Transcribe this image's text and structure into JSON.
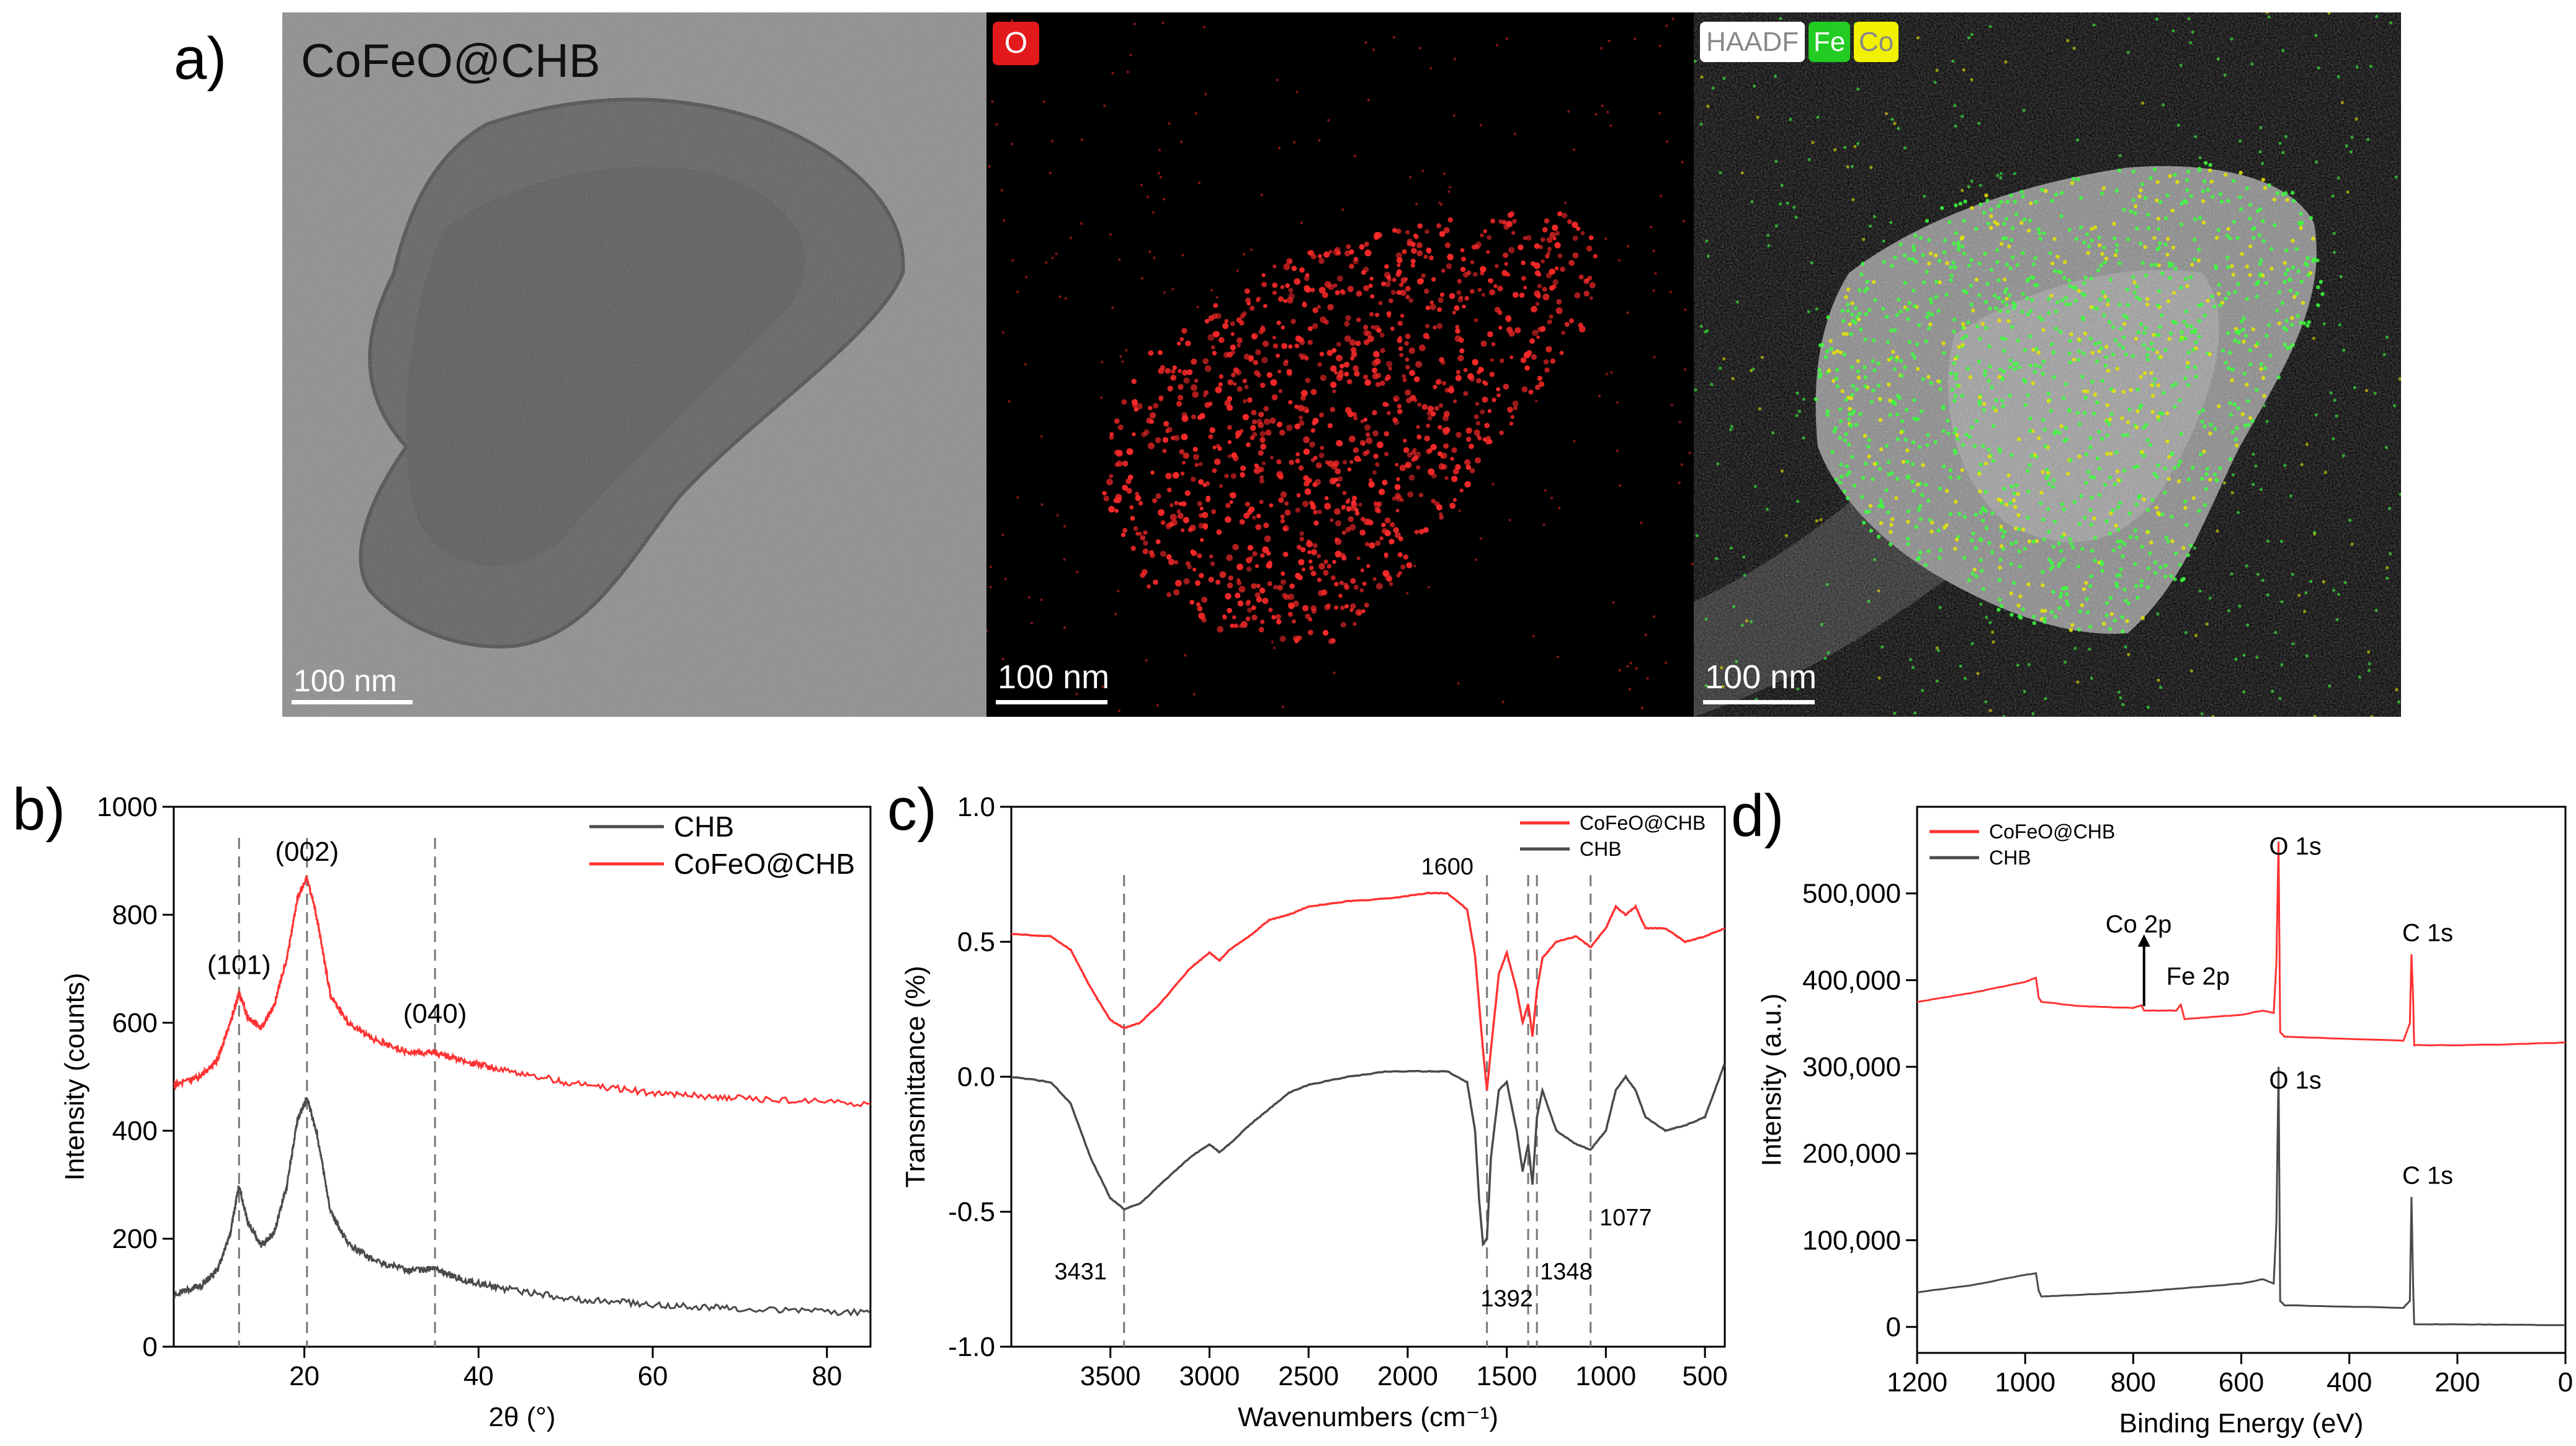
{
  "panel_a": {
    "label": "a)",
    "tem": {
      "sample": "CoFeO@CHB",
      "scale_bar": "100 nm"
    },
    "o_map": {
      "tag": "O",
      "tag_color": "#e31a1c",
      "scale_bar": "100 nm",
      "dot_color": "#ff2a2a"
    },
    "merge_map": {
      "tags": [
        {
          "text": "HAADF",
          "bg": "#ffffff",
          "fg": "#888888"
        },
        {
          "text": "Fe",
          "bg": "#22cc22",
          "fg": "#ffffff"
        },
        {
          "text": "Co",
          "bg": "#f2f200",
          "fg": "#888888"
        }
      ],
      "scale_bar": "100 nm",
      "fe_color": "#3cff3c",
      "co_color": "#e6e600"
    }
  },
  "panel_b": {
    "label": "b)"
  },
  "panel_c": {
    "label": "c)"
  },
  "panel_d": {
    "label": "d)"
  },
  "chart_data": [
    {
      "id": "b",
      "type": "line",
      "xlabel": "2θ (°)",
      "ylabel": "Intensity (counts)",
      "xlim": [
        5,
        85
      ],
      "ylim": [
        0,
        1000
      ],
      "xticks": [
        20,
        40,
        60,
        80
      ],
      "yticks": [
        0,
        200,
        400,
        600,
        800,
        1000
      ],
      "legend_placement": "top-right",
      "series": [
        {
          "name": "CHB",
          "color": "#4a4a4a",
          "x": [
            5,
            8,
            10,
            11.5,
            12.5,
            13.5,
            15,
            16.5,
            18,
            19.2,
            20.3,
            21.5,
            23,
            25,
            28,
            32,
            35,
            38,
            42,
            50,
            60,
            70,
            85
          ],
          "y": [
            95,
            112,
            140,
            210,
            300,
            230,
            188,
            210,
            300,
            420,
            460,
            390,
            250,
            190,
            160,
            140,
            145,
            125,
            110,
            90,
            78,
            70,
            62
          ]
        },
        {
          "name": "CoFeO@CHB",
          "color": "#ff3333",
          "x": [
            5,
            8,
            10,
            11.5,
            12.5,
            13.5,
            15,
            16.5,
            18,
            19.2,
            20.3,
            21.5,
            23,
            25,
            28,
            32,
            35,
            38,
            42,
            50,
            60,
            70,
            85
          ],
          "y": [
            485,
            500,
            530,
            600,
            655,
            610,
            590,
            630,
            720,
            830,
            870,
            790,
            650,
            600,
            570,
            545,
            545,
            530,
            515,
            490,
            470,
            460,
            450
          ]
        }
      ],
      "annotations": [
        {
          "text": "(101)",
          "x": 12.5,
          "y": 690
        },
        {
          "text": "(002)",
          "x": 20.3,
          "y": 900
        },
        {
          "text": "(040)",
          "x": 35,
          "y": 600
        }
      ],
      "reference_lines_x": [
        12.5,
        20.3,
        35
      ]
    },
    {
      "id": "c",
      "type": "line",
      "xlabel": "Wavenumbers (cm⁻¹)",
      "ylabel": "Transmittance (%)",
      "xlim": [
        4000,
        400
      ],
      "ylim": [
        -1.0,
        1.0
      ],
      "xticks": [
        3500,
        3000,
        2500,
        2000,
        1500,
        1000,
        500
      ],
      "yticks": [
        -1.0,
        -0.5,
        0.0,
        0.5,
        1.0
      ],
      "legend_placement": "top-right",
      "series": [
        {
          "name": "CoFeO@CHB",
          "color": "#ff3333",
          "x": [
            4000,
            3800,
            3700,
            3600,
            3500,
            3431,
            3350,
            3250,
            3100,
            3000,
            2950,
            2900,
            2800,
            2700,
            2600,
            2500,
            2300,
            2100,
            1900,
            1800,
            1700,
            1660,
            1620,
            1600,
            1580,
            1540,
            1500,
            1450,
            1420,
            1392,
            1370,
            1348,
            1320,
            1250,
            1150,
            1077,
            1000,
            950,
            900,
            850,
            800,
            700,
            600,
            500,
            400
          ],
          "y": [
            0.53,
            0.52,
            0.47,
            0.33,
            0.21,
            0.18,
            0.2,
            0.27,
            0.4,
            0.46,
            0.43,
            0.47,
            0.52,
            0.58,
            0.6,
            0.63,
            0.65,
            0.66,
            0.68,
            0.68,
            0.62,
            0.45,
            0.1,
            -0.05,
            0.1,
            0.38,
            0.46,
            0.32,
            0.2,
            0.27,
            0.15,
            0.32,
            0.44,
            0.5,
            0.52,
            0.48,
            0.55,
            0.63,
            0.6,
            0.63,
            0.55,
            0.55,
            0.5,
            0.52,
            0.55
          ]
        },
        {
          "name": "CHB",
          "color": "#4a4a4a",
          "x": [
            4000,
            3800,
            3700,
            3600,
            3500,
            3431,
            3350,
            3250,
            3100,
            3000,
            2950,
            2900,
            2800,
            2700,
            2600,
            2500,
            2300,
            2100,
            1900,
            1800,
            1700,
            1660,
            1640,
            1620,
            1600,
            1580,
            1540,
            1500,
            1450,
            1420,
            1392,
            1370,
            1348,
            1320,
            1250,
            1150,
            1077,
            1000,
            950,
            900,
            850,
            800,
            700,
            600,
            500,
            400
          ],
          "y": [
            0.0,
            -0.02,
            -0.1,
            -0.3,
            -0.45,
            -0.49,
            -0.47,
            -0.4,
            -0.3,
            -0.25,
            -0.28,
            -0.25,
            -0.18,
            -0.12,
            -0.06,
            -0.03,
            0.0,
            0.02,
            0.02,
            0.02,
            -0.02,
            -0.2,
            -0.45,
            -0.62,
            -0.6,
            -0.3,
            -0.05,
            -0.02,
            -0.2,
            -0.35,
            -0.25,
            -0.4,
            -0.15,
            -0.05,
            -0.2,
            -0.25,
            -0.27,
            -0.2,
            -0.05,
            0.0,
            -0.05,
            -0.15,
            -0.2,
            -0.18,
            -0.15,
            0.05
          ]
        }
      ],
      "annotations": [
        {
          "text": "1600",
          "x": 1800,
          "y": 0.75
        },
        {
          "text": "3431",
          "x": 3650,
          "y": -0.75
        },
        {
          "text": "1392",
          "x": 1500,
          "y": -0.85
        },
        {
          "text": "1348",
          "x": 1200,
          "y": -0.75
        },
        {
          "text": "1077",
          "x": 900,
          "y": -0.55
        }
      ],
      "reference_lines_x": [
        3431,
        1600,
        1392,
        1348,
        1077
      ]
    },
    {
      "id": "d",
      "type": "line",
      "xlabel": "Binding Energy (eV)",
      "ylabel": "Intensity (a.u.)",
      "xlim": [
        1200,
        0
      ],
      "ylim": [
        -30000,
        600000
      ],
      "xticks": [
        1200,
        1000,
        800,
        600,
        400,
        200,
        0
      ],
      "yticks": [
        0,
        100000,
        200000,
        300000,
        400000,
        500000
      ],
      "legend_placement": "top-left",
      "series": [
        {
          "name": "CoFeO@CHB",
          "color": "#ff3333",
          "x": [
            1200,
            1100,
            1000,
            980,
            975,
            970,
            900,
            800,
            785,
            780,
            720,
            712,
            705,
            600,
            560,
            540,
            535,
            531,
            528,
            520,
            300,
            288,
            285,
            282,
            280,
            200,
            100,
            0
          ],
          "y": [
            375000,
            385000,
            398000,
            403000,
            380000,
            375000,
            370000,
            368000,
            371000,
            365000,
            365000,
            372000,
            355000,
            360000,
            365000,
            362000,
            420000,
            560000,
            340000,
            335000,
            330000,
            350000,
            430000,
            380000,
            325000,
            325000,
            326000,
            328000
          ]
        },
        {
          "name": "CHB",
          "color": "#4a4a4a",
          "x": [
            1200,
            1100,
            1000,
            980,
            975,
            970,
            900,
            800,
            700,
            600,
            560,
            540,
            535,
            531,
            528,
            520,
            300,
            288,
            285,
            282,
            280,
            200,
            100,
            0
          ],
          "y": [
            40000,
            48000,
            60000,
            62000,
            42000,
            35000,
            37000,
            40000,
            45000,
            50000,
            55000,
            50000,
            120000,
            300000,
            30000,
            25000,
            22000,
            30000,
            150000,
            50000,
            3000,
            3000,
            2500,
            2000
          ]
        }
      ],
      "annotations": [
        {
          "text": "O 1s",
          "x": 500,
          "y": 545000
        },
        {
          "text": "C 1s",
          "x": 255,
          "y": 445000
        },
        {
          "text": "Co 2p",
          "x": 790,
          "y": 455000
        },
        {
          "text": "Fe 2p",
          "x": 680,
          "y": 395000
        },
        {
          "text": "O 1s",
          "x": 500,
          "y": 275000
        },
        {
          "text": "C 1s",
          "x": 255,
          "y": 165000
        }
      ],
      "arrow": {
        "x": 780,
        "y_from": 370000,
        "y_to": 450000
      }
    }
  ]
}
